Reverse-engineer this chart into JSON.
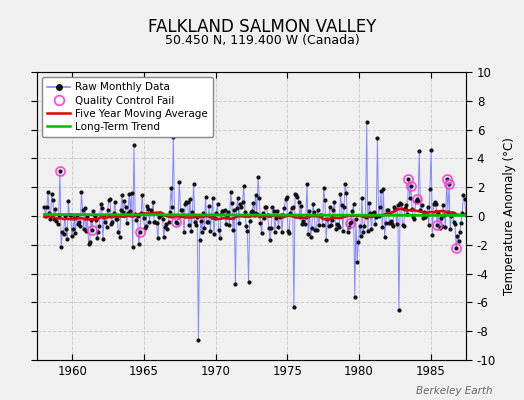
{
  "title": "FALKLAND SALMON VALLEY",
  "subtitle": "50.450 N, 119.400 W (Canada)",
  "ylabel": "Temperature Anomaly (°C)",
  "watermark": "Berkeley Earth",
  "xlim": [
    1957.5,
    1987.5
  ],
  "ylim": [
    -10,
    10
  ],
  "xticks": [
    1960,
    1965,
    1970,
    1975,
    1980,
    1985
  ],
  "yticks": [
    -10,
    -8,
    -6,
    -4,
    -2,
    0,
    2,
    4,
    6,
    8,
    10
  ],
  "bg_color": "#f0f0f0",
  "plot_bg_color": "#f0f0f0",
  "raw_line_color": "#8888ff",
  "raw_dot_color": "#111111",
  "qc_fail_color": "#ff44dd",
  "moving_avg_color": "#dd0000",
  "trend_color": "#00bb00",
  "trend_slope": -0.002,
  "trend_intercept": 0.1,
  "start_year": 1958,
  "end_year": 1987,
  "seed": 42
}
